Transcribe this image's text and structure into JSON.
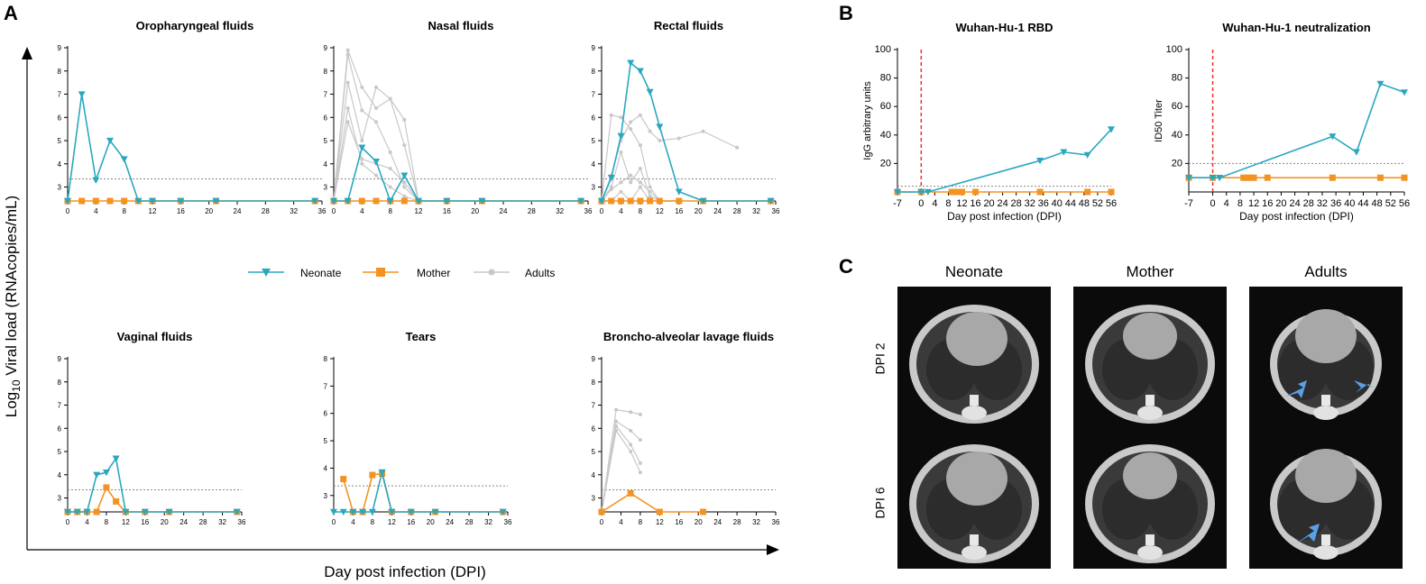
{
  "panels": {
    "A": "A",
    "B": "B",
    "C": "C"
  },
  "panelA": {
    "ylabel_prefix": "Log",
    "ylabel_sub": "10",
    "ylabel_suffix": " Viral load (RNAcopies/mL)",
    "xlabel": "Day post infection (DPI)"
  },
  "legend": {
    "neonate": "Neonate",
    "mother": "Mother",
    "adults": "Adults"
  },
  "colors": {
    "neonate": "#2aa7bf",
    "mother": "#f39323",
    "adults": "#c8c8c8",
    "threshold": "#888888",
    "vline": "#e8332f"
  },
  "chart_data": [
    {
      "type": "line",
      "title": "Oropharyngeal fluids",
      "x_ticks": [
        0,
        4,
        8,
        12,
        16,
        20,
        24,
        28,
        32,
        36
      ],
      "y_ticks": [
        3,
        4,
        5,
        6,
        7,
        8,
        9
      ],
      "ylim": [
        2.4,
        9
      ],
      "xlim": [
        0,
        36
      ],
      "threshold": 3.35,
      "series": [
        {
          "name": "Neonate",
          "x": [
            0,
            2,
            4,
            6,
            8,
            10,
            12,
            16,
            21,
            35
          ],
          "y": [
            2.4,
            7.0,
            3.3,
            5.0,
            4.2,
            2.4,
            2.4,
            2.4,
            2.4,
            2.4
          ]
        },
        {
          "name": "Mother",
          "x": [
            0,
            2,
            4,
            6,
            8,
            10,
            12,
            16,
            21,
            35
          ],
          "y": [
            2.4,
            2.4,
            2.4,
            2.4,
            2.4,
            2.4,
            2.4,
            2.4,
            2.4,
            2.4
          ]
        }
      ],
      "adults": []
    },
    {
      "type": "line",
      "title": "Nasal fluids",
      "x_ticks": [
        0,
        4,
        8,
        12,
        16,
        20,
        24,
        28,
        32,
        36
      ],
      "y_ticks": [
        3,
        4,
        5,
        6,
        7,
        8,
        9
      ],
      "ylim": [
        2.4,
        9
      ],
      "xlim": [
        0,
        36
      ],
      "threshold": 3.35,
      "series": [
        {
          "name": "Neonate",
          "x": [
            0,
            2,
            4,
            6,
            8,
            10,
            12,
            16,
            21,
            35
          ],
          "y": [
            2.4,
            2.4,
            4.7,
            4.1,
            2.4,
            3.5,
            2.4,
            2.4,
            2.4,
            2.4
          ]
        },
        {
          "name": "Mother",
          "x": [
            0,
            2,
            4,
            6,
            8,
            10,
            12,
            16,
            21,
            35
          ],
          "y": [
            2.4,
            2.4,
            2.4,
            2.4,
            2.4,
            2.4,
            2.4,
            2.4,
            2.4,
            2.4
          ]
        }
      ],
      "adults": [
        {
          "x": [
            0,
            2,
            4,
            6,
            8,
            10,
            12
          ],
          "y": [
            2.4,
            8.9,
            7.3,
            6.4,
            6.8,
            5.9,
            2.4
          ]
        },
        {
          "x": [
            0,
            2,
            4,
            6,
            8,
            10,
            12
          ],
          "y": [
            2.4,
            8.7,
            6.3,
            5.8,
            4.5,
            3.0,
            2.4
          ]
        },
        {
          "x": [
            0,
            2,
            4,
            6,
            8,
            10,
            12
          ],
          "y": [
            2.4,
            7.5,
            5.0,
            7.3,
            6.8,
            4.8,
            2.4
          ]
        },
        {
          "x": [
            0,
            2,
            4,
            6,
            8,
            10,
            12
          ],
          "y": [
            2.4,
            6.4,
            4.0,
            3.5,
            3.0,
            2.6,
            2.4
          ]
        },
        {
          "x": [
            0,
            2,
            4,
            6,
            8,
            10,
            12,
            16,
            21,
            35
          ],
          "y": [
            2.4,
            5.8,
            4.2,
            4.0,
            3.8,
            3.2,
            2.4,
            2.4,
            2.4,
            2.4
          ]
        }
      ]
    },
    {
      "type": "line",
      "title": "Rectal fluids",
      "x_ticks": [
        0,
        4,
        8,
        12,
        16,
        20,
        24,
        28,
        32,
        36
      ],
      "y_ticks": [
        3,
        4,
        5,
        6,
        7,
        8,
        9
      ],
      "ylim": [
        2.4,
        9
      ],
      "xlim": [
        0,
        36
      ],
      "threshold": 3.35,
      "series": [
        {
          "name": "Neonate",
          "x": [
            0,
            2,
            4,
            6,
            8,
            10,
            12,
            16,
            21,
            35
          ],
          "y": [
            2.4,
            3.4,
            5.2,
            8.35,
            8.0,
            7.1,
            5.6,
            2.8,
            2.4,
            2.4
          ]
        },
        {
          "name": "Mother",
          "x": [
            0,
            2,
            4,
            6,
            8,
            10,
            12,
            16,
            21,
            35
          ],
          "y": [
            2.4,
            2.4,
            2.4,
            2.4,
            2.4,
            2.4,
            2.4,
            2.4,
            2.4,
            2.4
          ]
        }
      ],
      "adults": [
        {
          "x": [
            0,
            2,
            4,
            6,
            8,
            10,
            12,
            16
          ],
          "y": [
            2.4,
            6.1,
            6.0,
            5.5,
            4.8,
            3.0,
            2.4,
            2.4
          ]
        },
        {
          "x": [
            0,
            2,
            4,
            6,
            8,
            10,
            12,
            16,
            21,
            28
          ],
          "y": [
            2.4,
            3.5,
            5.0,
            5.8,
            6.1,
            5.4,
            5.0,
            5.1,
            5.4,
            4.7
          ]
        },
        {
          "x": [
            0,
            2,
            4,
            6,
            8,
            10,
            12,
            16
          ],
          "y": [
            2.4,
            2.9,
            3.2,
            3.5,
            3.2,
            2.8,
            2.4,
            2.4
          ]
        },
        {
          "x": [
            0,
            2,
            4,
            6,
            8,
            10,
            12,
            16
          ],
          "y": [
            2.4,
            3.0,
            4.5,
            3.2,
            3.8,
            2.6,
            2.4,
            2.4
          ]
        },
        {
          "x": [
            0,
            2,
            4,
            6,
            8,
            10,
            12
          ],
          "y": [
            2.4,
            2.4,
            2.8,
            2.4,
            3.0,
            2.4,
            2.4
          ]
        }
      ]
    },
    {
      "type": "line",
      "title": "Vaginal fluids",
      "x_ticks": [
        0,
        4,
        8,
        12,
        16,
        20,
        24,
        28,
        32,
        36
      ],
      "y_ticks": [
        3,
        4,
        5,
        6,
        7,
        8,
        9
      ],
      "ylim": [
        2.4,
        9
      ],
      "xlim": [
        0,
        36
      ],
      "threshold": 3.35,
      "series": [
        {
          "name": "Neonate",
          "x": [
            0,
            2,
            4,
            6,
            8,
            10,
            12,
            16,
            21,
            35
          ],
          "y": [
            2.4,
            2.4,
            2.4,
            4.0,
            4.1,
            4.7,
            2.4,
            2.4,
            2.4,
            2.4
          ]
        },
        {
          "name": "Mother",
          "x": [
            0,
            2,
            4,
            6,
            8,
            10,
            12,
            16,
            21,
            35
          ],
          "y": [
            2.4,
            2.4,
            2.4,
            2.4,
            3.45,
            2.85,
            2.4,
            2.4,
            2.4,
            2.4
          ]
        }
      ],
      "adults": []
    },
    {
      "type": "line",
      "title": "Tears",
      "x_ticks": [
        0,
        4,
        8,
        12,
        16,
        20,
        24,
        28,
        32,
        36
      ],
      "y_ticks": [
        3,
        4,
        5,
        6,
        7,
        8
      ],
      "ylim": [
        2.4,
        8
      ],
      "xlim": [
        0,
        36
      ],
      "threshold": 3.35,
      "series": [
        {
          "name": "Neonate",
          "x": [
            0,
            2,
            4,
            6,
            8,
            10,
            12,
            16,
            21,
            35
          ],
          "y": [
            2.4,
            2.4,
            2.4,
            2.4,
            2.4,
            3.85,
            2.4,
            2.4,
            2.4,
            2.4
          ]
        },
        {
          "name": "Mother",
          "x": [
            2,
            4,
            6,
            8,
            10,
            12,
            16,
            21,
            35
          ],
          "y": [
            3.6,
            2.4,
            2.4,
            3.75,
            3.8,
            2.4,
            2.4,
            2.4,
            2.4
          ]
        }
      ],
      "adults": []
    },
    {
      "type": "line",
      "title": "Broncho-alveolar lavage fluids",
      "x_ticks": [
        0,
        4,
        8,
        12,
        16,
        20,
        24,
        28,
        32,
        36
      ],
      "y_ticks": [
        3,
        4,
        5,
        6,
        7,
        8,
        9
      ],
      "ylim": [
        2.4,
        9
      ],
      "xlim": [
        0,
        36
      ],
      "threshold": 3.35,
      "series": [
        {
          "name": "Mother",
          "x": [
            0,
            6,
            12,
            21
          ],
          "y": [
            2.4,
            3.2,
            2.4,
            2.4
          ]
        }
      ],
      "adults": [
        {
          "x": [
            0,
            3,
            6,
            8
          ],
          "y": [
            2.4,
            6.8,
            6.7,
            6.6
          ]
        },
        {
          "x": [
            0,
            3,
            6,
            8
          ],
          "y": [
            2.4,
            6.3,
            5.9,
            5.5
          ]
        },
        {
          "x": [
            0,
            3,
            6,
            8
          ],
          "y": [
            2.4,
            6.1,
            5.3,
            4.5
          ]
        },
        {
          "x": [
            0,
            3,
            6,
            8
          ],
          "y": [
            2.4,
            5.9,
            5.0,
            4.1
          ]
        }
      ]
    },
    {
      "type": "line",
      "title": "Wuhan-Hu-1 RBD",
      "ylabel": "IgG arbitrary units",
      "xlabel": "Day post infection (DPI)",
      "x_ticks": [
        -7,
        0,
        4,
        8,
        12,
        16,
        20,
        24,
        28,
        32,
        36,
        40,
        44,
        48,
        52,
        56
      ],
      "y_ticks": [
        20,
        40,
        60,
        80,
        100
      ],
      "ylim": [
        0,
        100
      ],
      "xlim": [
        -7,
        56
      ],
      "threshold": 4,
      "vline": 0,
      "series": [
        {
          "name": "Neonate",
          "x": [
            -7,
            0,
            2,
            35,
            42,
            49,
            56
          ],
          "y": [
            0,
            0,
            0,
            22,
            28,
            26,
            44
          ]
        },
        {
          "name": "Mother",
          "x": [
            -7,
            0,
            9,
            10,
            11,
            12,
            16,
            35,
            49,
            56
          ],
          "y": [
            0,
            0,
            0,
            0,
            0,
            0,
            0,
            0,
            0,
            0
          ]
        }
      ]
    },
    {
      "type": "line",
      "title": "Wuhan-Hu-1 neutralization",
      "ylabel": "ID50 Titer",
      "xlabel": "Day post infection (DPI)",
      "x_ticks": [
        -7,
        0,
        4,
        8,
        12,
        16,
        20,
        24,
        28,
        32,
        36,
        40,
        44,
        48,
        52,
        56
      ],
      "y_ticks": [
        20,
        40,
        60,
        80,
        100
      ],
      "ylim": [
        0,
        100
      ],
      "xlim": [
        -7,
        56
      ],
      "threshold": 20,
      "vline": 0,
      "series": [
        {
          "name": "Neonate",
          "x": [
            -7,
            0,
            2,
            35,
            42,
            49,
            56
          ],
          "y": [
            10,
            10,
            10,
            39,
            28,
            76,
            70
          ]
        },
        {
          "name": "Mother",
          "x": [
            -7,
            0,
            9,
            10,
            11,
            12,
            16,
            35,
            49,
            56
          ],
          "y": [
            10,
            10,
            10,
            10,
            10,
            10,
            10,
            10,
            10,
            10
          ]
        }
      ]
    }
  ],
  "panelC": {
    "columns": [
      "Neonate",
      "Mother",
      "Adults"
    ],
    "rows": [
      "DPI 2",
      "DPI 6"
    ]
  }
}
